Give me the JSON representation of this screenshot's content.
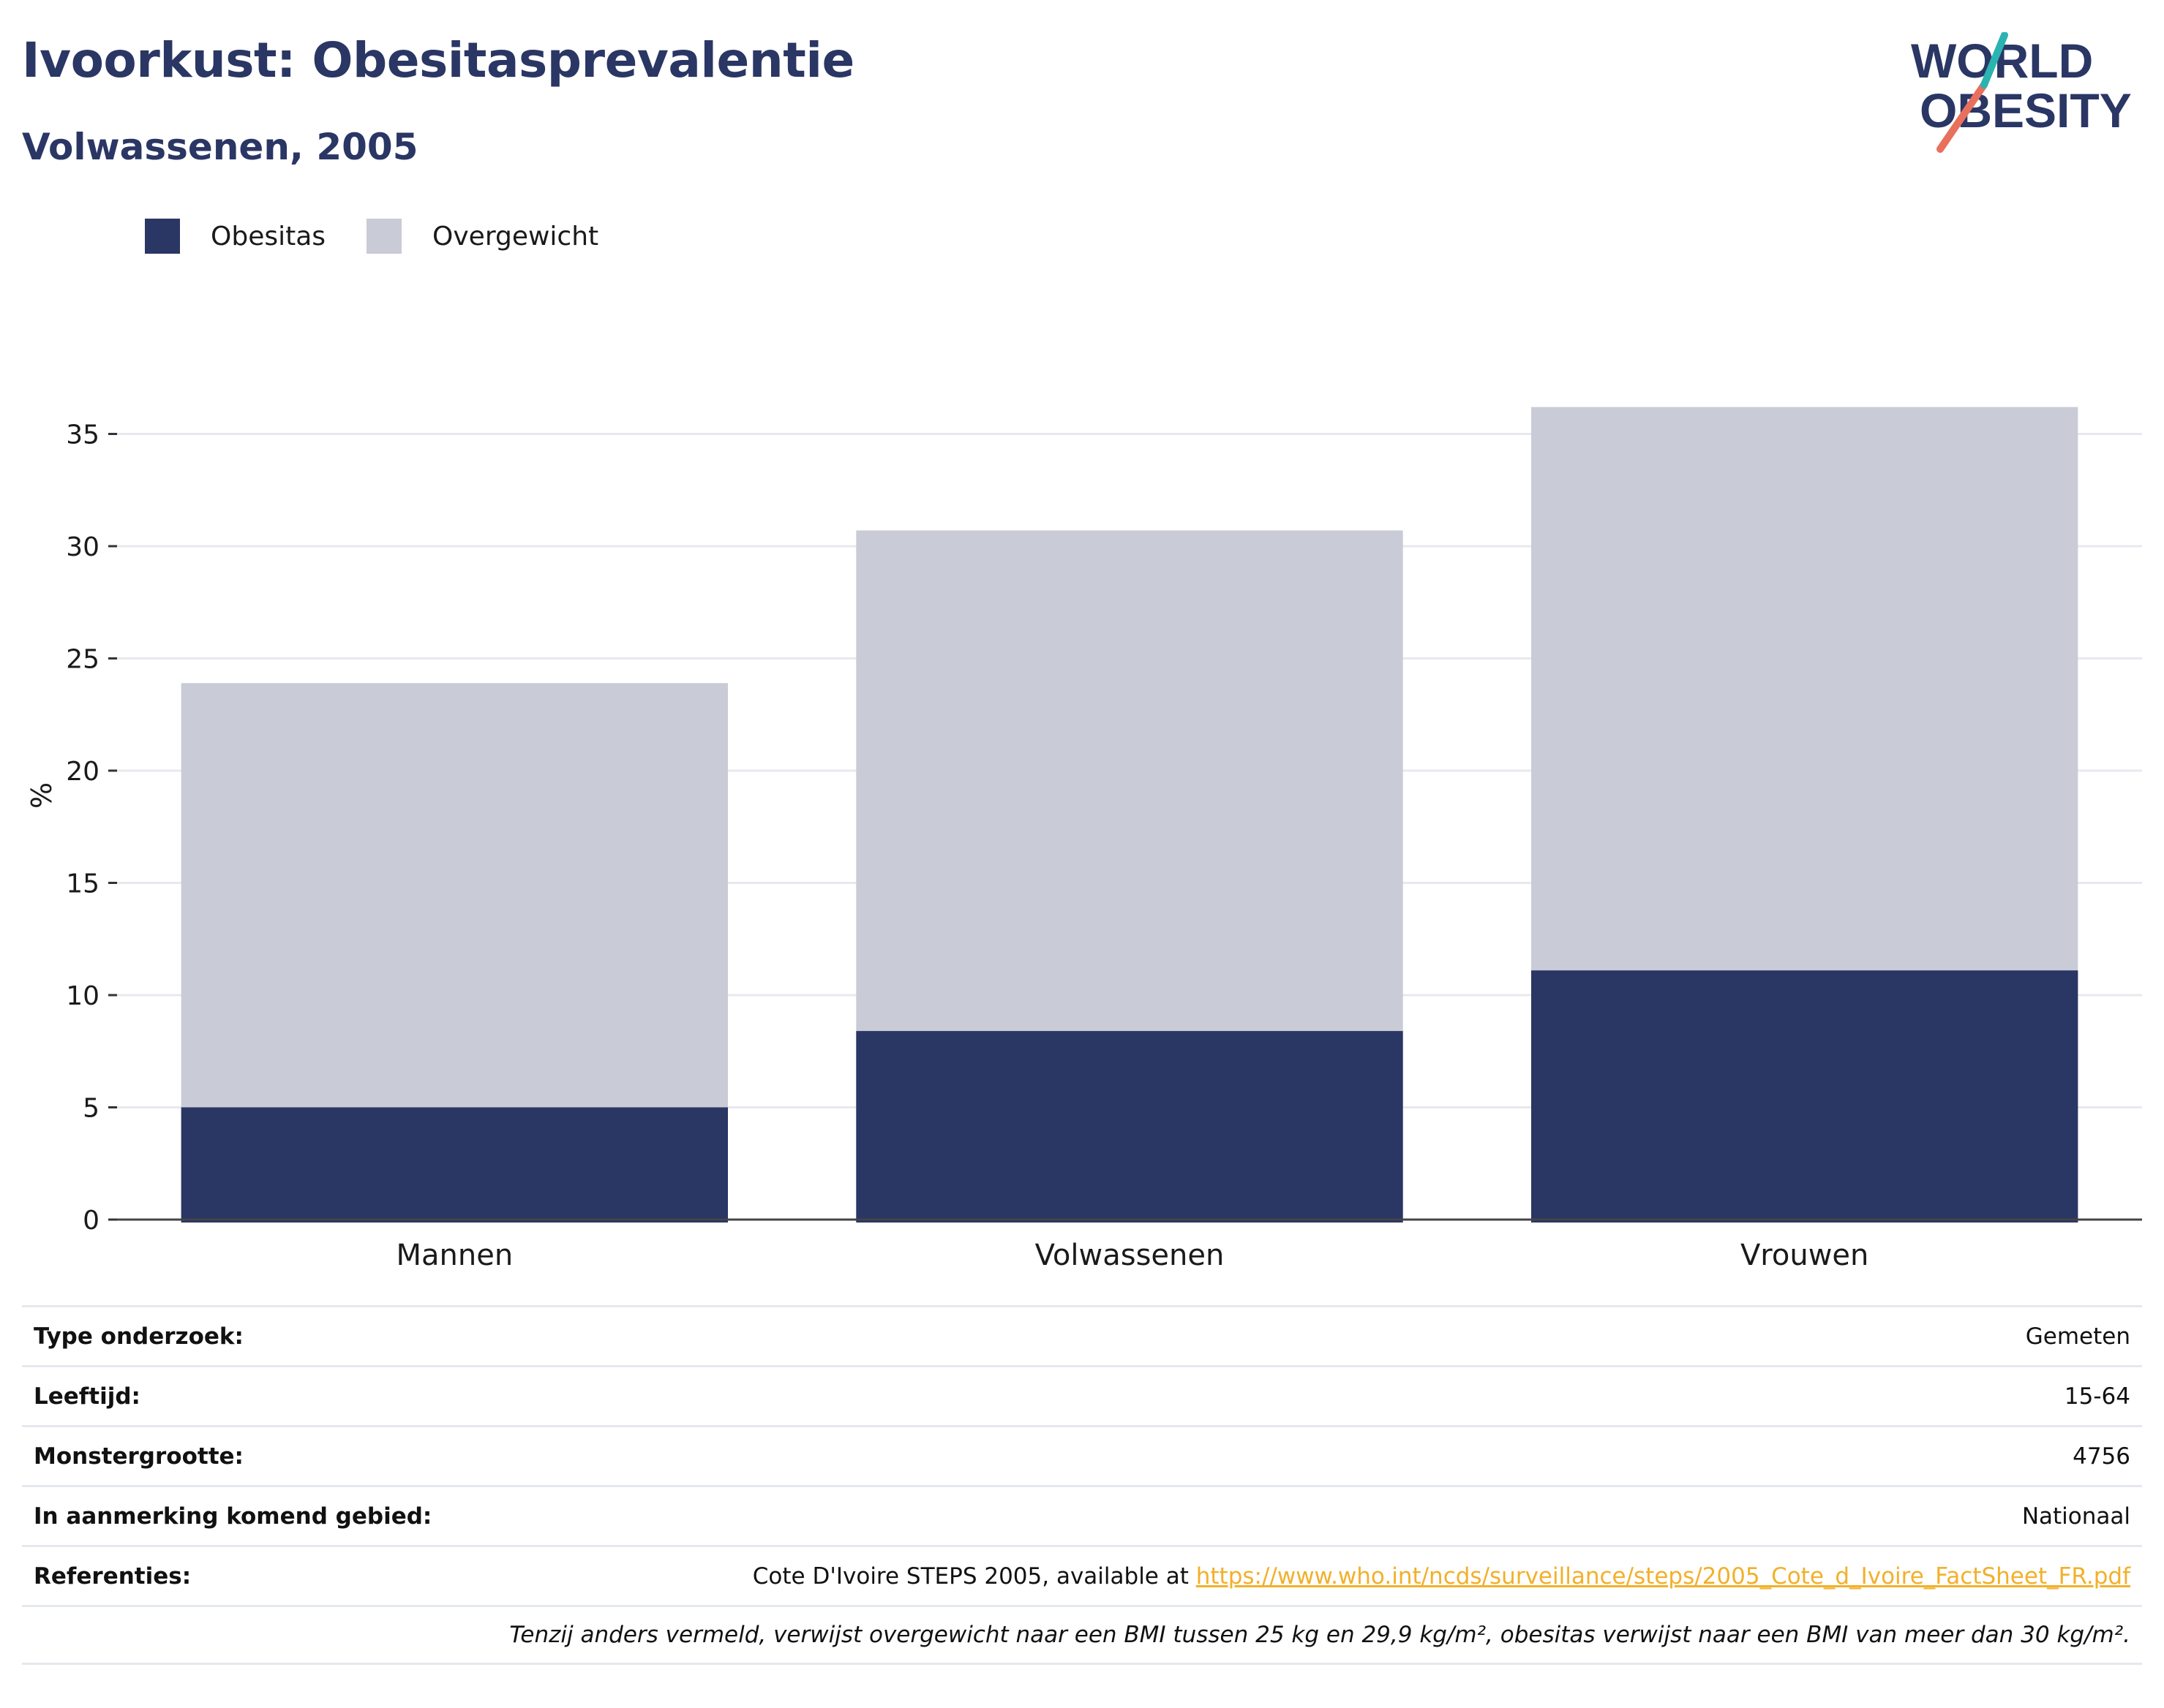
{
  "header": {
    "title": "Ivoorkust: Obesitasprevalentie",
    "subtitle": "Volwassenen, 2005"
  },
  "logo": {
    "line1": "WORLD",
    "line2": "OBESITY",
    "colors": {
      "text": "#2a3664",
      "slash_top": "#2bb3b1",
      "slash_bottom": "#e8705c"
    }
  },
  "legend": [
    {
      "label": "Obesitas",
      "color": "#2a3664"
    },
    {
      "label": "Overgewicht",
      "color": "#c9cbd7"
    }
  ],
  "chart_data": {
    "type": "bar",
    "stacked": false,
    "overlapping": true,
    "categories": [
      "Mannen",
      "Volwassenen",
      "Vrouwen"
    ],
    "series": [
      {
        "name": "Overgewicht",
        "values": [
          23.9,
          30.7,
          36.2
        ],
        "color": "#c9cbd7"
      },
      {
        "name": "Obesitas",
        "values": [
          5.0,
          8.4,
          11.1
        ],
        "color": "#2a3664"
      }
    ],
    "ylabel": "%",
    "ylim": [
      0,
      38
    ],
    "yticks": [
      0,
      5,
      10,
      15,
      20,
      25,
      30,
      35
    ],
    "grid": true
  },
  "info": {
    "rows": [
      {
        "label": "Type onderzoek:",
        "value": "Gemeten"
      },
      {
        "label": "Leeftijd:",
        "value": "15-64"
      },
      {
        "label": "Monstergrootte:",
        "value": "4756"
      },
      {
        "label": "In aanmerking komend gebied:",
        "value": "Nationaal"
      }
    ],
    "references": {
      "label": "Referenties:",
      "text": "Cote D'Ivoire STEPS 2005, available at ",
      "link": "https://www.who.int/ncds/surveillance/steps/2005_Cote_d_Ivoire_FactSheet_FR.pdf"
    },
    "note": "Tenzij anders vermeld, verwijst overgewicht naar een BMI tussen 25 kg en 29,9 kg/m², obesitas verwijst naar een BMI van meer dan 30 kg/m²."
  }
}
